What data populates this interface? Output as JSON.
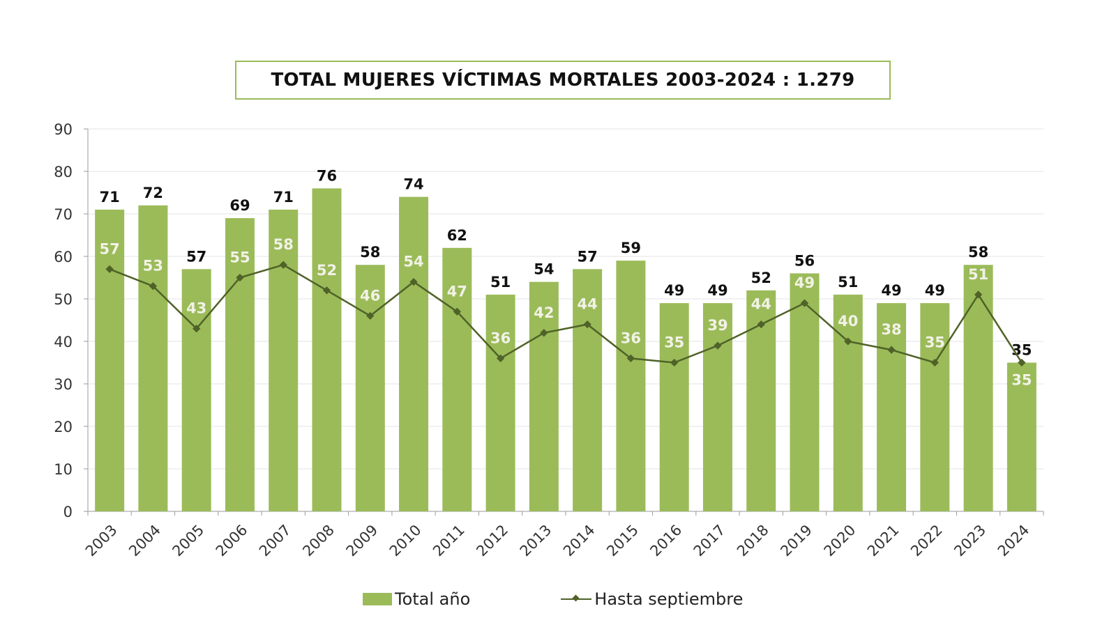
{
  "chart_data": {
    "type": "bar+line",
    "title": "TOTAL MUJERES VÍCTIMAS MORTALES 2003-2024 : 1.279",
    "categories": [
      "2003",
      "2004",
      "2005",
      "2006",
      "2007",
      "2008",
      "2009",
      "2010",
      "2011",
      "2012",
      "2013",
      "2014",
      "2015",
      "2016",
      "2017",
      "2018",
      "2019",
      "2020",
      "2021",
      "2022",
      "2023",
      "2024"
    ],
    "series": [
      {
        "name": "Total año",
        "type": "bar",
        "color": "#9bbb59",
        "values": [
          71,
          72,
          57,
          69,
          71,
          76,
          58,
          74,
          62,
          51,
          54,
          57,
          59,
          49,
          49,
          52,
          56,
          51,
          49,
          49,
          58,
          35
        ]
      },
      {
        "name": "Hasta septiembre",
        "type": "line",
        "color": "#4f6228",
        "values": [
          57,
          53,
          43,
          55,
          58,
          52,
          46,
          54,
          47,
          36,
          42,
          44,
          36,
          35,
          39,
          44,
          49,
          40,
          38,
          35,
          51,
          35
        ]
      }
    ],
    "ylim": [
      0,
      90
    ],
    "yticks": [
      0,
      10,
      20,
      30,
      40,
      50,
      60,
      70,
      80,
      90
    ],
    "grid": true,
    "legend": "bottom"
  }
}
